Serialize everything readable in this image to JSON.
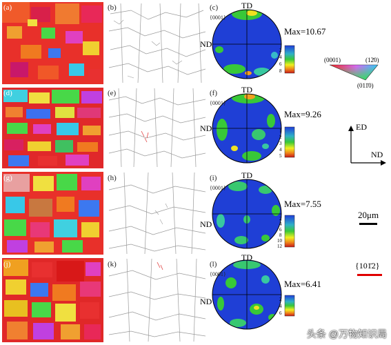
{
  "rows": [
    {
      "labels": [
        "(a)",
        "(b)",
        "(c)"
      ],
      "max": "Max=10.67",
      "ticks": [
        "2",
        "4",
        "6",
        "8"
      ]
    },
    {
      "labels": [
        "(d)",
        "(e)",
        "(f)"
      ],
      "max": "Max=9.26",
      "ticks": [
        "1",
        "2",
        "3",
        "4",
        "5"
      ]
    },
    {
      "labels": [
        "(g)",
        "(h)",
        "(i)"
      ],
      "max": "Max=7.55",
      "ticks": [
        "2",
        "4",
        "6",
        "8",
        "10",
        "12"
      ]
    },
    {
      "labels": [
        "(j)",
        "(k)",
        "(l)"
      ],
      "max": "Max=6.41",
      "ticks": [
        "2",
        "4",
        "6"
      ]
    }
  ],
  "pf": {
    "plane": "{0001}",
    "td": "TD",
    "nd": "ND"
  },
  "ipf_key": {
    "top_left": "(0001)",
    "top_right": "(12̄0)",
    "bottom": "(011̄0)"
  },
  "axes": {
    "ed": "ED",
    "nd": "ND"
  },
  "scale_bar": "20μm",
  "twin_legend": "{101̄2}",
  "watermark": "头条 @万物知识局",
  "colors": {
    "pf_bg": "#1f3fd6",
    "twin": "#e00000",
    "grain_boundary": "#888888"
  }
}
